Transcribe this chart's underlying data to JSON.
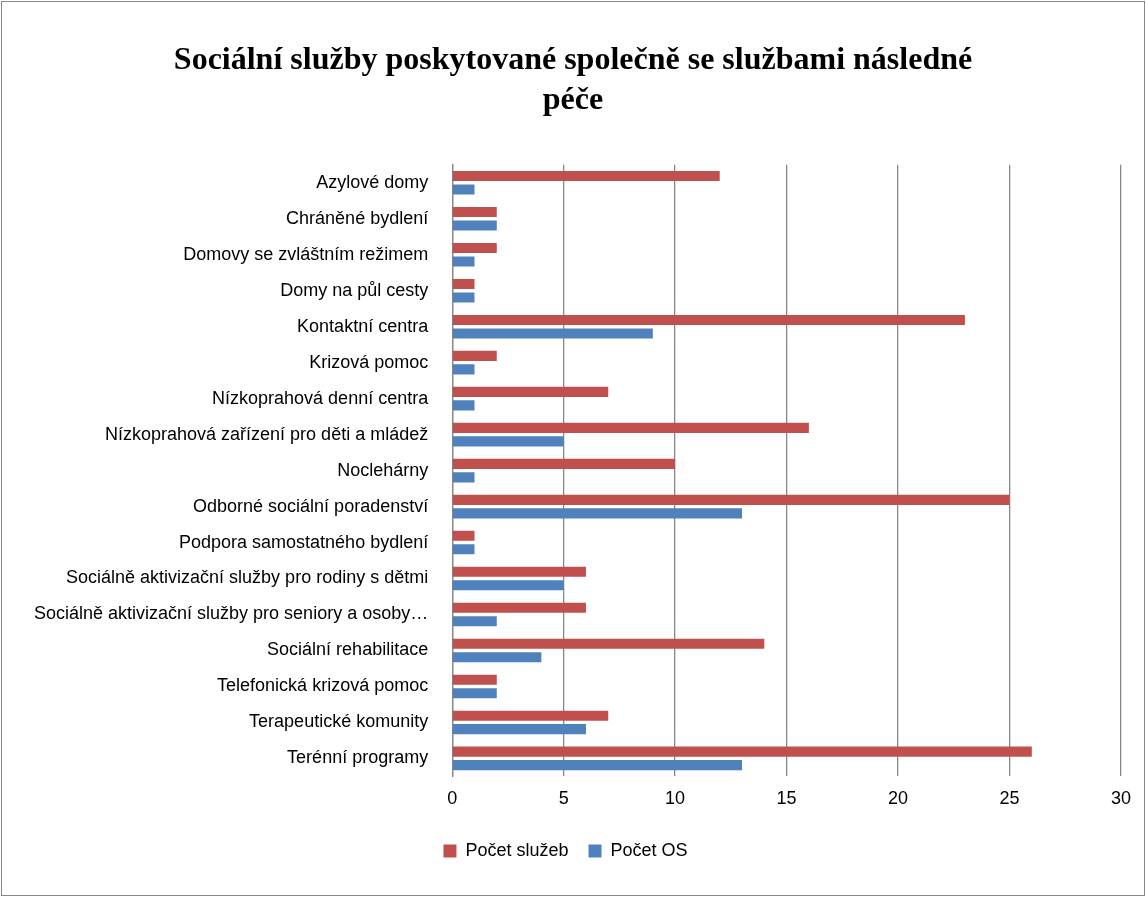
{
  "chart_data": {
    "type": "bar",
    "orientation": "horizontal",
    "title": "Sociální služby poskytované společně se službami následné péče",
    "categories": [
      "Azylové domy",
      "Chráněné bydlení",
      "Domovy se zvláštním režimem",
      "Domy na půl cesty",
      "Kontaktní centra",
      "Krizová pomoc",
      "Nízkoprahová denní centra",
      "Nízkoprahová zařízení pro děti a mládež",
      "Noclehárny",
      "Odborné sociální poradenství",
      "Podpora samostatného bydlení",
      "Sociálně aktivizační služby pro rodiny s dětmi",
      "Sociálně aktivizační služby pro seniory a osoby…",
      "Sociální rehabilitace",
      "Telefonická krizová pomoc",
      "Terapeutické komunity",
      "Terénní programy"
    ],
    "series": [
      {
        "name": "Počet služeb",
        "color": "#c0504d",
        "values": [
          12,
          2,
          2,
          1,
          23,
          2,
          7,
          16,
          10,
          25,
          1,
          6,
          6,
          14,
          2,
          7,
          26
        ]
      },
      {
        "name": "Počet OS",
        "color": "#4f81bd",
        "values": [
          1,
          2,
          1,
          1,
          9,
          1,
          1,
          5,
          1,
          13,
          1,
          5,
          2,
          4,
          2,
          6,
          13
        ]
      }
    ],
    "xlim": [
      0,
      30
    ],
    "xticks": [
      0,
      5,
      10,
      15,
      20,
      25,
      30
    ],
    "grid": "x",
    "legend": "bottom"
  }
}
